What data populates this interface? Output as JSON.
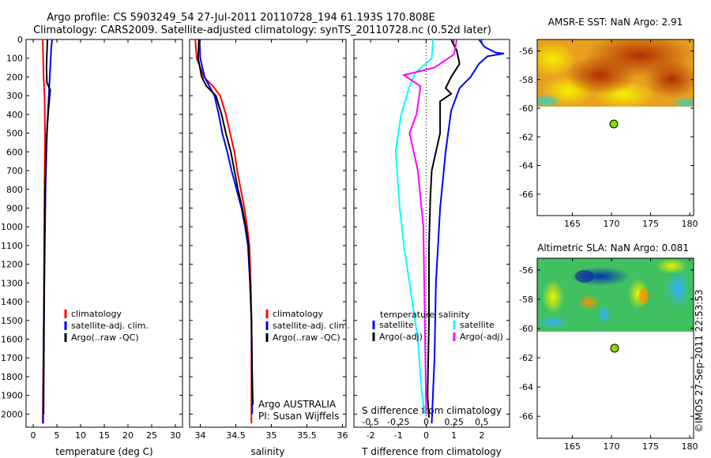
{
  "header": {
    "line1": "Argo profile: CS 5903249_54 27-Jul-2011 20110728_194 61.193S 170.808E",
    "line2": "Climatology: CARS2009. Satellite-adjusted climatology: synTS_20110728.nc (0.52d later)"
  },
  "stamp": "©IMOS 27-Sep-2011 22:53:53",
  "colors": {
    "climatology": "#ff0000",
    "satellite": "#0000ff",
    "argo": "#000000",
    "sat_salinity": "#00ffff",
    "argo_salinity": "#ff00ff"
  },
  "chart_data": [
    {
      "id": "temperature",
      "type": "line",
      "xlabel": "temperature (deg C)",
      "ylabel": "",
      "xlim": [
        -1.5,
        31.5
      ],
      "ylim": [
        2070,
        0
      ],
      "y_inverted": true,
      "xticks": [
        "0",
        "5",
        "10",
        "15",
        "20",
        "25",
        "30"
      ],
      "yticks": [
        "0",
        "100",
        "200",
        "300",
        "400",
        "500",
        "600",
        "700",
        "800",
        "900",
        "1000",
        "1100",
        "1200",
        "1300",
        "1400",
        "1500",
        "1600",
        "1700",
        "1800",
        "1900",
        "2000"
      ],
      "legend": [
        "climatology",
        "satellite-adj. clim.",
        "Argo(..raw -QC)"
      ],
      "legend_position": "lower-center",
      "series": [
        {
          "name": "climatology",
          "color": "#ff0000",
          "points": [
            [
              2.0,
              0
            ],
            [
              2.1,
              100
            ],
            [
              2.2,
              200
            ],
            [
              2.4,
              300
            ],
            [
              2.5,
              500
            ],
            [
              2.4,
              800
            ],
            [
              2.3,
              1200
            ],
            [
              2.2,
              1600
            ],
            [
              2.0,
              2050
            ]
          ]
        },
        {
          "name": "satellite-adj. clim.",
          "color": "#0000ff",
          "points": [
            [
              4.0,
              0
            ],
            [
              3.8,
              50
            ],
            [
              3.5,
              200
            ],
            [
              3.3,
              300
            ],
            [
              2.9,
              500
            ],
            [
              2.6,
              800
            ],
            [
              2.4,
              1200
            ],
            [
              2.2,
              1600
            ],
            [
              2.1,
              2050
            ]
          ]
        },
        {
          "name": "Argo(..raw -QC)",
          "color": "#000000",
          "points": [
            [
              3.0,
              0
            ],
            [
              2.8,
              150
            ],
            [
              2.9,
              230
            ],
            [
              3.6,
              270
            ],
            [
              3.3,
              350
            ],
            [
              3.0,
              450
            ],
            [
              2.7,
              600
            ],
            [
              2.5,
              800
            ],
            [
              2.4,
              1100
            ],
            [
              2.3,
              1500
            ],
            [
              2.2,
              1900
            ],
            [
              2.2,
              2000
            ]
          ]
        }
      ]
    },
    {
      "id": "salinity",
      "type": "line",
      "xlabel": "salinity",
      "xlim": [
        33.85,
        36.05
      ],
      "ylim": [
        2070,
        0
      ],
      "y_inverted": true,
      "xticks": [
        "34",
        "34.5",
        "35",
        "35.5",
        "36"
      ],
      "legend": [
        "climatology",
        "satellite-adj. clim.",
        "Argo(..raw -QC)"
      ],
      "legend_position": "lower-right",
      "annotation": [
        "Argo AUSTRALIA",
        "PI: Susan Wijffels"
      ],
      "series": [
        {
          "name": "climatology",
          "color": "#ff0000",
          "points": [
            [
              33.93,
              0
            ],
            [
              33.95,
              100
            ],
            [
              34.05,
              200
            ],
            [
              34.18,
              250
            ],
            [
              34.28,
              300
            ],
            [
              34.36,
              400
            ],
            [
              34.42,
              500
            ],
            [
              34.48,
              600
            ],
            [
              34.52,
              700
            ],
            [
              34.57,
              800
            ],
            [
              34.62,
              900
            ],
            [
              34.66,
              1000
            ],
            [
              34.69,
              1100
            ],
            [
              34.71,
              1300
            ],
            [
              34.72,
              1500
            ],
            [
              34.72,
              1800
            ],
            [
              34.72,
              2050
            ]
          ]
        },
        {
          "name": "satellite-adj. clim.",
          "color": "#0000ff",
          "points": [
            [
              33.99,
              0
            ],
            [
              34.0,
              100
            ],
            [
              34.03,
              150
            ],
            [
              34.06,
              200
            ],
            [
              34.13,
              250
            ],
            [
              34.2,
              300
            ],
            [
              34.26,
              400
            ],
            [
              34.31,
              500
            ],
            [
              34.38,
              600
            ],
            [
              34.44,
              700
            ],
            [
              34.51,
              800
            ],
            [
              34.58,
              900
            ],
            [
              34.63,
              1000
            ],
            [
              34.67,
              1100
            ],
            [
              34.7,
              1300
            ],
            [
              34.72,
              1500
            ],
            [
              34.73,
              1800
            ],
            [
              34.73,
              2000
            ]
          ]
        },
        {
          "name": "Argo(..raw -QC)",
          "color": "#000000",
          "points": [
            [
              33.98,
              0
            ],
            [
              33.97,
              100
            ],
            [
              34.02,
              200
            ],
            [
              34.09,
              250
            ],
            [
              34.22,
              300
            ],
            [
              34.3,
              400
            ],
            [
              34.36,
              500
            ],
            [
              34.43,
              600
            ],
            [
              34.48,
              700
            ],
            [
              34.53,
              800
            ],
            [
              34.59,
              900
            ],
            [
              34.64,
              1000
            ],
            [
              34.68,
              1100
            ],
            [
              34.7,
              1300
            ],
            [
              34.72,
              1500
            ],
            [
              34.73,
              1800
            ],
            [
              34.74,
              1950
            ]
          ]
        }
      ]
    },
    {
      "id": "difference",
      "type": "line",
      "xlabel": "T difference from climatology",
      "x2label": "S difference from climatology",
      "xlim": [
        -2.6,
        3.0
      ],
      "ylim": [
        2070,
        0
      ],
      "y_inverted": true,
      "xticks": [
        "-2",
        "-1",
        "0",
        "1",
        "2"
      ],
      "x2ticks": [
        "-0.5",
        "-0.25",
        "0",
        "0.25",
        "0.5"
      ],
      "zero_line": "dotted",
      "legend": {
        "temperature": [
          "satellite",
          "Argo(-adj)"
        ],
        "salinity": [
          "satellite",
          "Argo(-adj)"
        ]
      },
      "legend_position": "lower-center",
      "series": [
        {
          "name": "temperature satellite",
          "color": "#0000ff",
          "points": [
            [
              1.9,
              0
            ],
            [
              2.1,
              40
            ],
            [
              2.5,
              70
            ],
            [
              2.8,
              75
            ],
            [
              2.2,
              90
            ],
            [
              1.9,
              130
            ],
            [
              1.6,
              200
            ],
            [
              1.2,
              260
            ],
            [
              0.9,
              380
            ],
            [
              0.7,
              600
            ],
            [
              0.5,
              900
            ],
            [
              0.35,
              1300
            ],
            [
              0.3,
              1700
            ],
            [
              0.2,
              2050
            ]
          ]
        },
        {
          "name": "temperature Argo(-adj)",
          "color": "#000000",
          "points": [
            [
              0.9,
              0
            ],
            [
              1.1,
              60
            ],
            [
              1.2,
              130
            ],
            [
              0.9,
              200
            ],
            [
              0.7,
              260
            ],
            [
              0.9,
              290
            ],
            [
              0.5,
              330
            ],
            [
              0.5,
              500
            ],
            [
              0.2,
              700
            ],
            [
              0.15,
              850
            ],
            [
              0.1,
              1100
            ],
            [
              0.1,
              1500
            ],
            [
              0.05,
              1900
            ],
            [
              0.1,
              2020
            ]
          ]
        },
        {
          "name": "salinity satellite",
          "color": "#00ffff",
          "points": [
            [
              0.25,
              0
            ],
            [
              0.2,
              100
            ],
            [
              -0.4,
              180
            ],
            [
              -0.6,
              250
            ],
            [
              -0.9,
              400
            ],
            [
              -1.1,
              600
            ],
            [
              -0.95,
              900
            ],
            [
              -0.8,
              1100
            ],
            [
              -0.6,
              1300
            ],
            [
              -0.3,
              1600
            ],
            [
              -0.15,
              1900
            ],
            [
              -0.05,
              2000
            ]
          ]
        },
        {
          "name": "salinity Argo(-adj)",
          "color": "#ff00ff",
          "points": [
            [
              1.1,
              0
            ],
            [
              1.0,
              80
            ],
            [
              0.3,
              150
            ],
            [
              -0.8,
              190
            ],
            [
              -0.2,
              250
            ],
            [
              -0.35,
              400
            ],
            [
              -0.6,
              500
            ],
            [
              -0.3,
              700
            ],
            [
              -0.1,
              1000
            ],
            [
              -0.05,
              1500
            ],
            [
              0.0,
              2000
            ]
          ]
        }
      ]
    },
    {
      "id": "sst_map",
      "type": "heatmap",
      "title": "AMSR-E SST: NaN Argo: 2.91",
      "xlim": [
        160.5,
        180.5
      ],
      "ylim": [
        -67.5,
        -55.2
      ],
      "xticks": [
        "165",
        "170",
        "175",
        "180"
      ],
      "yticks": [
        "-56",
        "-58",
        "-60",
        "-62",
        "-64",
        "-66"
      ],
      "data_ylim": [
        -60.2,
        -55.2
      ],
      "argo_position": [
        170.808,
        -61.193
      ]
    },
    {
      "id": "sla_map",
      "type": "heatmap",
      "title": "Altimetric SLA: NaN Argo: 0.081",
      "xlim": [
        160.5,
        180.5
      ],
      "ylim": [
        -67.5,
        -55.2
      ],
      "xticks": [
        "165",
        "170",
        "175",
        "180"
      ],
      "yticks": [
        "-56",
        "-58",
        "-60",
        "-62",
        "-64",
        "-66"
      ],
      "data_ylim": [
        -60.2,
        -55.2
      ],
      "argo_position": [
        170.808,
        -61.193
      ]
    }
  ]
}
